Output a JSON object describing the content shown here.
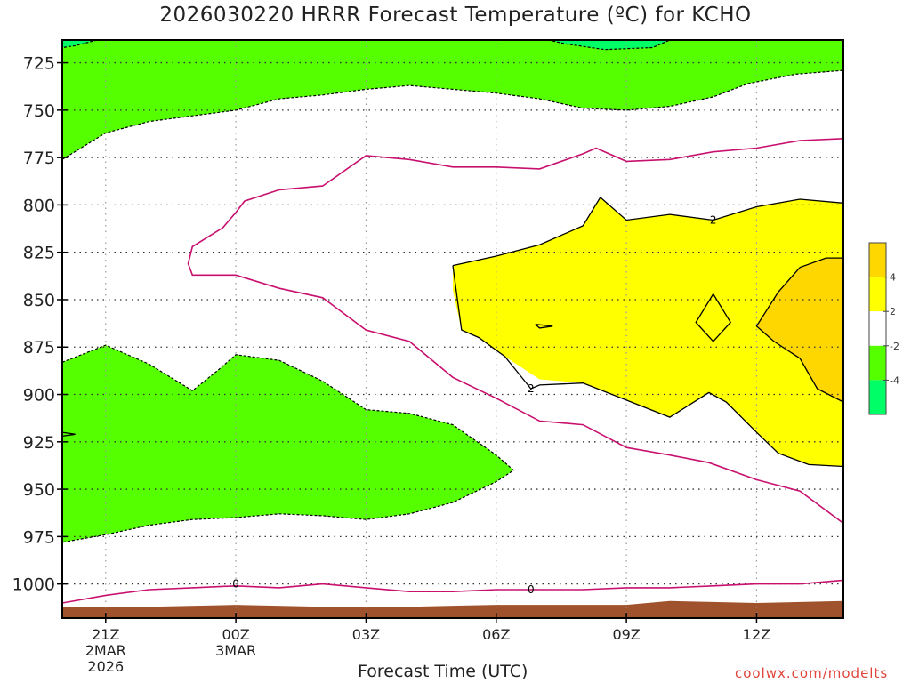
{
  "title": "2026030220 HRRR Forecast Temperature (ºC) for KCHO",
  "credit": "coolwx.com/modelts",
  "chart_data": {
    "type": "contour",
    "title": "2026030220 HRRR Forecast Temperature (ºC) for KCHO",
    "xlabel": "Forecast Time (UTC)",
    "ylabel": "",
    "x_ticks": [
      {
        "hour": 1,
        "lines": [
          "21Z",
          "2MAR",
          "2026"
        ]
      },
      {
        "hour": 4,
        "lines": [
          "00Z",
          "3MAR"
        ]
      },
      {
        "hour": 7,
        "lines": [
          "03Z"
        ]
      },
      {
        "hour": 10,
        "lines": [
          "06Z"
        ]
      },
      {
        "hour": 13,
        "lines": [
          "09Z"
        ]
      },
      {
        "hour": 16,
        "lines": [
          "12Z"
        ]
      }
    ],
    "xlim": [
      0,
      18
    ],
    "y_ticks": [
      725,
      750,
      775,
      800,
      825,
      850,
      875,
      900,
      925,
      950,
      975,
      1000
    ],
    "ylim": [
      713,
      1018
    ],
    "grid": true,
    "colorbar": {
      "colors": [
        "#00ff66",
        "#55ff00",
        "#ffffff",
        "#ffff00",
        "#ffd700"
      ],
      "labels": [
        "-4",
        "-2",
        "2",
        "4"
      ]
    },
    "contour_labels": [
      {
        "text": "2",
        "hour": 15,
        "pressure": 808
      },
      {
        "text": "2",
        "hour": 10.8,
        "pressure": 897
      },
      {
        "text": "0",
        "hour": 4,
        "pressure": 1000
      },
      {
        "text": "0",
        "hour": 10.8,
        "pressure": 1003
      }
    ],
    "fills": [
      {
        "name": "cold-upper",
        "color": "#55ff00",
        "points": [
          [
            0,
            713
          ],
          [
            18,
            713
          ],
          [
            18,
            729
          ],
          [
            16.9,
            731
          ],
          [
            15.8,
            736
          ],
          [
            15,
            743
          ],
          [
            14,
            748
          ],
          [
            13,
            750
          ],
          [
            12,
            749
          ],
          [
            11,
            744
          ],
          [
            10,
            741
          ],
          [
            9,
            739
          ],
          [
            8,
            737
          ],
          [
            7,
            739
          ],
          [
            6,
            742
          ],
          [
            5,
            744
          ],
          [
            4,
            750
          ],
          [
            3,
            753
          ],
          [
            2,
            756
          ],
          [
            1,
            762
          ],
          [
            0,
            776
          ]
        ]
      },
      {
        "name": "colder-top-right",
        "color": "#00ff66",
        "points": [
          [
            11.2,
            713
          ],
          [
            14,
            713
          ],
          [
            13.6,
            717
          ],
          [
            12.5,
            718
          ],
          [
            11.6,
            715
          ]
        ]
      },
      {
        "name": "colder-top-left",
        "color": "#00ff66",
        "points": [
          [
            0,
            713
          ],
          [
            0.8,
            713
          ],
          [
            0.3,
            716
          ],
          [
            0,
            717
          ]
        ]
      },
      {
        "name": "cold-lower",
        "color": "#55ff00",
        "points": [
          [
            0,
            883
          ],
          [
            1,
            874
          ],
          [
            2,
            884
          ],
          [
            3,
            898
          ],
          [
            3.6,
            887
          ],
          [
            4,
            879
          ],
          [
            5,
            882
          ],
          [
            6,
            893
          ],
          [
            7,
            908
          ],
          [
            8,
            910
          ],
          [
            9,
            916
          ],
          [
            10,
            932
          ],
          [
            10.4,
            940
          ],
          [
            10,
            946
          ],
          [
            9,
            957
          ],
          [
            8,
            963
          ],
          [
            7,
            966
          ],
          [
            6,
            964
          ],
          [
            5,
            963
          ],
          [
            4,
            965
          ],
          [
            3,
            966
          ],
          [
            2,
            969
          ],
          [
            1,
            974
          ],
          [
            0,
            978
          ]
        ]
      },
      {
        "name": "ground",
        "color": "#a0522d",
        "points": [
          [
            0,
            1018
          ],
          [
            0,
            1012
          ],
          [
            2,
            1012
          ],
          [
            4,
            1011
          ],
          [
            6,
            1012
          ],
          [
            8,
            1012
          ],
          [
            10,
            1011
          ],
          [
            13,
            1011
          ],
          [
            14,
            1009
          ],
          [
            16,
            1010
          ],
          [
            18,
            1009
          ],
          [
            18,
            1018
          ]
        ]
      },
      {
        "name": "warm-2",
        "color": "#ffff00",
        "points": [
          [
            9,
            832
          ],
          [
            10,
            827
          ],
          [
            11,
            821
          ],
          [
            12,
            811
          ],
          [
            12.4,
            796
          ],
          [
            13,
            808
          ],
          [
            14,
            805
          ],
          [
            15,
            808
          ],
          [
            16,
            801
          ],
          [
            17,
            797
          ],
          [
            18,
            799
          ],
          [
            18,
            938
          ],
          [
            17.2,
            937
          ],
          [
            16.5,
            931
          ],
          [
            16,
            920
          ],
          [
            15.3,
            904
          ],
          [
            14.9,
            899
          ],
          [
            14,
            912
          ],
          [
            13,
            903
          ],
          [
            12,
            894
          ],
          [
            11,
            892
          ],
          [
            10.2,
            880
          ],
          [
            9.6,
            870
          ],
          [
            9.2,
            866
          ],
          [
            9,
            845
          ]
        ]
      },
      {
        "name": "warm-4-right",
        "color": "#ffd700",
        "points": [
          [
            18,
            828
          ],
          [
            17.6,
            828
          ],
          [
            17,
            833
          ],
          [
            16.5,
            846
          ],
          [
            16,
            864
          ],
          [
            16.4,
            872
          ],
          [
            17,
            881
          ],
          [
            17.4,
            897
          ],
          [
            18,
            904
          ]
        ]
      }
    ],
    "isotherm_dashed": [
      [
        [
          0,
          776
        ],
        [
          1,
          762
        ],
        [
          2,
          756
        ],
        [
          3,
          753
        ],
        [
          4,
          750
        ],
        [
          5,
          744
        ],
        [
          6,
          742
        ],
        [
          7,
          739
        ],
        [
          8,
          737
        ],
        [
          9,
          739
        ],
        [
          10,
          741
        ],
        [
          11,
          744
        ],
        [
          12,
          749
        ],
        [
          13,
          750
        ],
        [
          14,
          748
        ],
        [
          15,
          743
        ],
        [
          15.8,
          736
        ],
        [
          16.9,
          731
        ],
        [
          18,
          729
        ]
      ],
      [
        [
          11.2,
          713
        ],
        [
          11.6,
          715
        ],
        [
          12.5,
          718
        ],
        [
          13.6,
          717
        ],
        [
          14,
          713
        ]
      ],
      [
        [
          0.8,
          713
        ],
        [
          0.3,
          716
        ],
        [
          0,
          717
        ]
      ],
      [
        [
          0,
          883
        ],
        [
          1,
          874
        ],
        [
          2,
          884
        ],
        [
          3,
          898
        ],
        [
          3.6,
          887
        ],
        [
          4,
          879
        ],
        [
          5,
          882
        ],
        [
          6,
          893
        ],
        [
          7,
          908
        ],
        [
          8,
          910
        ],
        [
          9,
          916
        ],
        [
          10,
          932
        ],
        [
          10.4,
          940
        ],
        [
          10,
          946
        ],
        [
          9,
          957
        ],
        [
          8,
          963
        ],
        [
          7,
          966
        ],
        [
          6,
          964
        ],
        [
          5,
          963
        ],
        [
          4,
          965
        ],
        [
          3,
          966
        ],
        [
          2,
          969
        ],
        [
          1,
          974
        ],
        [
          0,
          978
        ]
      ]
    ],
    "isotherm_solid_black": [
      [
        [
          9,
          832
        ],
        [
          10,
          827
        ],
        [
          11,
          821
        ],
        [
          12,
          811
        ],
        [
          12.4,
          796
        ],
        [
          13,
          808
        ],
        [
          14,
          805
        ],
        [
          15,
          808
        ],
        [
          16,
          801
        ],
        [
          17,
          797
        ],
        [
          18,
          799
        ]
      ],
      [
        [
          9,
          832
        ],
        [
          9.2,
          866
        ],
        [
          9.6,
          870
        ],
        [
          10.2,
          880
        ],
        [
          10.8,
          897
        ],
        [
          11,
          895
        ],
        [
          12,
          894
        ],
        [
          13,
          903
        ],
        [
          14,
          912
        ],
        [
          14.9,
          899
        ],
        [
          15.3,
          904
        ],
        [
          16,
          920
        ],
        [
          16.5,
          931
        ],
        [
          17.2,
          937
        ],
        [
          18,
          938
        ]
      ],
      [
        [
          18,
          828
        ],
        [
          17.6,
          828
        ],
        [
          17,
          833
        ],
        [
          16.5,
          846
        ],
        [
          16,
          864
        ],
        [
          16.4,
          872
        ],
        [
          17,
          881
        ],
        [
          17.4,
          897
        ],
        [
          18,
          904
        ]
      ],
      [
        [
          15,
          847
        ],
        [
          15.4,
          862
        ],
        [
          15,
          872
        ],
        [
          14.6,
          862
        ],
        [
          15,
          847
        ]
      ],
      [
        [
          10.9,
          863
        ],
        [
          11.3,
          864
        ],
        [
          11,
          865
        ],
        [
          10.9,
          863
        ]
      ],
      [
        [
          0,
          920
        ],
        [
          0.3,
          921
        ],
        [
          0,
          922
        ]
      ]
    ],
    "isotherm_solid_magenta": [
      [
        [
          4,
          804
        ],
        [
          3.7,
          812
        ],
        [
          3,
          822
        ],
        [
          2.9,
          831
        ],
        [
          3,
          837
        ],
        [
          4,
          837
        ],
        [
          5,
          844
        ],
        [
          6,
          849
        ],
        [
          7,
          866
        ],
        [
          8,
          872
        ],
        [
          9,
          891
        ],
        [
          10,
          902
        ],
        [
          11,
          914
        ],
        [
          12,
          916
        ],
        [
          13,
          928
        ],
        [
          14,
          932
        ],
        [
          14.9,
          936
        ],
        [
          16,
          945
        ],
        [
          17,
          951
        ],
        [
          18,
          968
        ]
      ],
      [
        [
          4,
          804
        ],
        [
          4.2,
          798
        ],
        [
          5,
          792
        ],
        [
          6,
          790
        ],
        [
          7,
          774
        ],
        [
          8,
          776
        ],
        [
          9,
          780
        ],
        [
          10,
          780
        ],
        [
          11,
          781
        ],
        [
          12,
          773
        ],
        [
          12.3,
          770
        ],
        [
          13,
          777
        ],
        [
          14,
          776
        ],
        [
          15,
          772
        ],
        [
          16,
          770
        ],
        [
          17,
          766
        ],
        [
          18,
          765
        ]
      ],
      [
        [
          0,
          1010
        ],
        [
          1,
          1006
        ],
        [
          2,
          1003
        ],
        [
          3,
          1002
        ],
        [
          4,
          1001
        ],
        [
          5,
          1002
        ],
        [
          6,
          1000
        ],
        [
          7,
          1002
        ],
        [
          8,
          1004
        ],
        [
          9,
          1004
        ],
        [
          10,
          1003
        ],
        [
          11,
          1003
        ],
        [
          12,
          1003
        ],
        [
          13,
          1002
        ],
        [
          14,
          1002
        ],
        [
          15,
          1001
        ],
        [
          16,
          1000
        ],
        [
          17,
          1000
        ],
        [
          18,
          998
        ]
      ]
    ]
  }
}
